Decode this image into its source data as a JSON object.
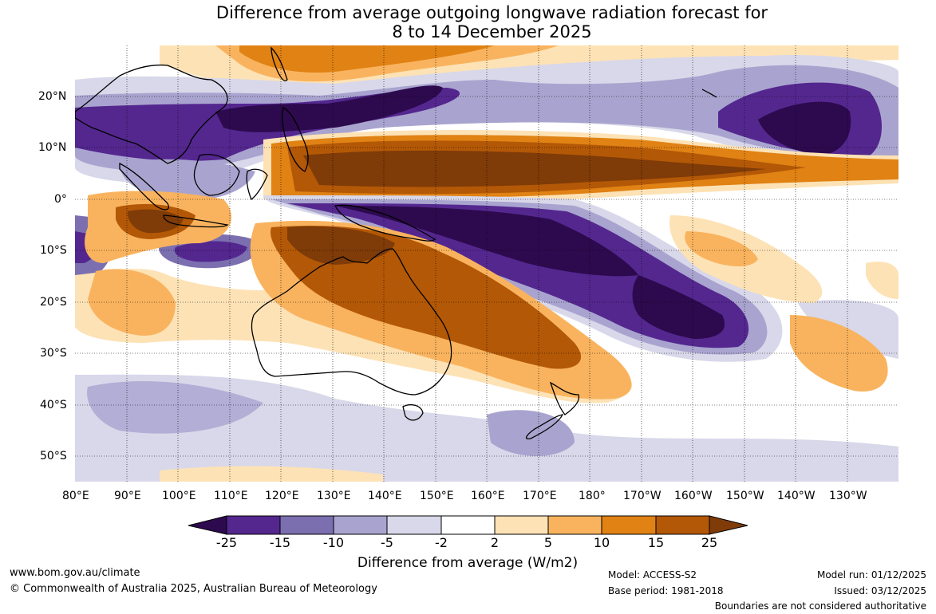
{
  "title": {
    "line1": "Difference from average outgoing longwave radiation forecast for",
    "line2": "8 to 14 December 2025"
  },
  "lat_labels": [
    "20°N",
    "10°N",
    "0°",
    "10°S",
    "20°S",
    "30°S",
    "40°S",
    "50°S"
  ],
  "lon_labels": [
    "80°E",
    "90°E",
    "100°E",
    "110°E",
    "120°E",
    "130°E",
    "140°E",
    "150°E",
    "160°E",
    "170°E",
    "180°",
    "170°W",
    "160°W",
    "150°W",
    "140°W",
    "130°W"
  ],
  "colorbar": {
    "ticks": [
      "-25",
      "-15",
      "-10",
      "-5",
      "-2",
      "2",
      "5",
      "10",
      "15",
      "25"
    ],
    "colors": [
      "#2d0a4e",
      "#54278f",
      "#7b6fb0",
      "#a9a4cf",
      "#d8d8ea",
      "#ffffff",
      "#fde2b5",
      "#f9b35e",
      "#e08214",
      "#b35806",
      "#7f3b08"
    ],
    "title": "Difference from average (W/m2)"
  },
  "footer": {
    "url": "www.bom.gov.au/climate",
    "copyright": "© Commonwealth of Australia 2025, Australian Bureau of Meteorology",
    "model": "Model: ACCESS-S2",
    "base_period": "Base period: 1981-2018",
    "model_run": "Model run: 01/12/2025",
    "issued": "Issued: 03/12/2025",
    "disclaimer": "Boundaries are not considered authoritative"
  }
}
